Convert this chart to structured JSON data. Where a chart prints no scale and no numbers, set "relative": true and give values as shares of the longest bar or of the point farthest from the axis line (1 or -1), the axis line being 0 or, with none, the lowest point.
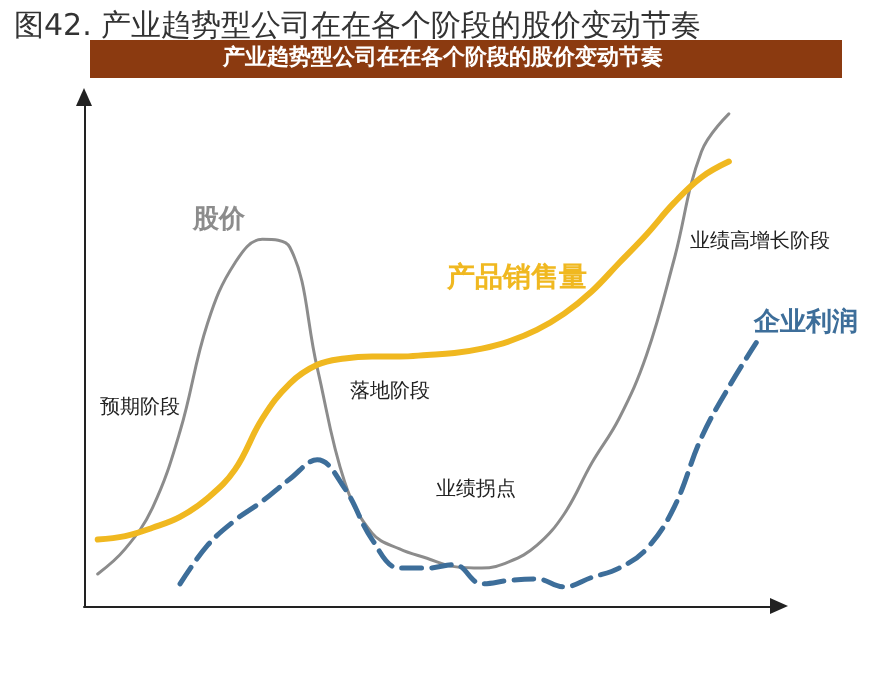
{
  "chart_data": {
    "type": "line",
    "title": "图42. 产业趋势型公司在在各个阶段的股价变动节奏",
    "subtitle": "产业趋势型公司在在各个阶段的股价变动节奏",
    "relative": true,
    "marker": "none",
    "categories": [
      null,
      null,
      null,
      null,
      null,
      null,
      null,
      null,
      null,
      null,
      null,
      null,
      null,
      null,
      null,
      null,
      null,
      null,
      null,
      null,
      null,
      null,
      null,
      null,
      null
    ],
    "series": [
      {
        "name": "股价",
        "color": "#8c8c8c",
        "line_style": "solid",
        "values": [
          0.065,
          0.116,
          0.2,
          0.355,
          0.574,
          0.697,
          0.745,
          0.729,
          0.484,
          0.252,
          0.148,
          0.116,
          0.097,
          0.08,
          0.077,
          0.09,
          0.123,
          0.187,
          0.29,
          0.381,
          0.51,
          0.703,
          0.923,
          1,
          null
        ]
      },
      {
        "name": "产品销售量",
        "color": "#f0b820",
        "line_style": "solid",
        "values": [
          0.135,
          0.142,
          0.159,
          0.181,
          0.219,
          0.277,
          0.381,
          0.452,
          0.49,
          0.503,
          0.507,
          0.507,
          0.51,
          0.514,
          0.523,
          0.538,
          0.561,
          0.594,
          0.639,
          0.697,
          0.755,
          0.819,
          0.871,
          0.903,
          null
        ]
      },
      {
        "name": "企业利润",
        "color": "#3d6e9a",
        "line_style": "dashed",
        "values": [
          null,
          null,
          null,
          0.045,
          0.123,
          0.174,
          0.213,
          0.258,
          0.297,
          0.239,
          0.135,
          0.077,
          0.077,
          0.084,
          0.045,
          0.052,
          0.055,
          0.039,
          0.058,
          0.077,
          0.116,
          0.2,
          0.342,
          0.445,
          0.535
        ]
      }
    ],
    "annotations": [
      "预期阶段",
      "落地阶段",
      "业绩拐点",
      "业绩高增长阶段"
    ]
  }
}
